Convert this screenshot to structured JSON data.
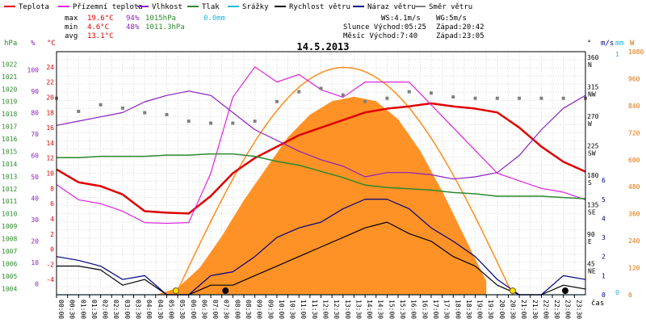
{
  "legend": [
    {
      "label": "Teplota",
      "color": "#e00000"
    },
    {
      "label": "Přízemní teplota",
      "color": "#dd22dd"
    },
    {
      "label": "Vlhkost",
      "color": "#8a1fc0"
    },
    {
      "label": "Tlak",
      "color": "#2a8a2a"
    },
    {
      "label": "Srážky",
      "color": "#22b8d8"
    },
    {
      "label": "Rychlost větru",
      "color": "#000000"
    },
    {
      "label": "Náraz větru",
      "color": "#000080"
    },
    {
      "label": "Směr větru",
      "color": "#808080"
    }
  ],
  "stats": {
    "max": {
      "label": "max",
      "temp": "19.6°C",
      "hum": "94%",
      "press": "1015hPa",
      "rain": "0.0mm"
    },
    "min": {
      "label": "min",
      "temp": "4.6°C",
      "hum": "48%",
      "press": "1011.3hPa"
    },
    "avg": {
      "label": "avg",
      "temp": "13.1°C"
    }
  },
  "info": {
    "ws": "WS:4.1m/s",
    "wg": "WG:5m/s",
    "sun": "Slunce Východ:05:25",
    "sunset": "Západ:20:42",
    "moon": "Měsíc  Východ:7:40",
    "moonset": "Západ:23:05"
  },
  "chart_data": {
    "type": "line",
    "title": "14.5.2013",
    "xlabel": "čas",
    "x_ticks": [
      "00:00",
      "00:30",
      "01:00",
      "01:30",
      "02:00",
      "02:30",
      "03:00",
      "03:30",
      "04:00",
      "04:30",
      "05:00",
      "05:30",
      "06:00",
      "06:30",
      "07:00",
      "07:30",
      "08:00",
      "08:30",
      "09:00",
      "09:30",
      "10:00",
      "10:30",
      "11:00",
      "11:30",
      "12:00",
      "12:30",
      "13:00",
      "13:30",
      "14:00",
      "14:30",
      "15:00",
      "15:30",
      "16:00",
      "16:30",
      "17:00",
      "17:30",
      "18:00",
      "18:30",
      "19:00",
      "19:30",
      "20:00",
      "20:30",
      "21:00",
      "21:30",
      "22:00",
      "22:30",
      "23:00",
      "23:30"
    ],
    "axes": {
      "hpa": {
        "label": "hPa",
        "ticks": [
          1004,
          1005,
          1006,
          1007,
          1008,
          1009,
          1010,
          1011,
          1012,
          1013,
          1014,
          1015,
          1016,
          1017,
          1018,
          1019,
          1020,
          1021,
          1022
        ]
      },
      "pct": {
        "label": "%",
        "ticks": [
          0,
          10,
          20,
          30,
          40,
          50,
          60,
          70,
          80,
          90,
          100
        ]
      },
      "temp": {
        "label": "°C",
        "ticks": [
          -4,
          -2,
          0,
          2,
          4,
          6,
          8,
          10,
          12,
          14,
          16,
          18,
          20,
          22,
          24
        ]
      },
      "dir": {
        "label": "°",
        "ticks": [
          "45 NE",
          "90 E",
          "135 SE",
          "180 S",
          "225 SW",
          "270 W",
          "315 NW",
          "360 N"
        ]
      },
      "ms": {
        "label": "m/s",
        "ticks": [
          0,
          1,
          2,
          3,
          4,
          5,
          6
        ]
      },
      "mm": {
        "label": "mm",
        "ticks": [
          "0",
          "1"
        ]
      },
      "w": {
        "label": "W",
        "ticks": [
          0,
          120,
          240,
          360,
          480,
          600,
          720,
          840,
          960,
          1080
        ]
      }
    },
    "series": [
      {
        "name": "Teplota",
        "color": "#e00000",
        "x": [
          0,
          1,
          2,
          3,
          4,
          5,
          6,
          7,
          8,
          9,
          10,
          11,
          12,
          13,
          14,
          15,
          16,
          17,
          18,
          19,
          20,
          21,
          22,
          23,
          24
        ],
        "values": [
          10.5,
          8.8,
          8.3,
          7.2,
          5.0,
          4.8,
          4.7,
          7.0,
          10.0,
          12.0,
          13.5,
          15.0,
          16.0,
          17.0,
          18.0,
          18.5,
          18.8,
          19.2,
          18.8,
          18.5,
          18.0,
          16.0,
          13.5,
          11.5,
          10.2
        ]
      },
      {
        "name": "Přízemní teplota",
        "color": "#dd22dd",
        "x": [
          0,
          1,
          2,
          3,
          4,
          5,
          6,
          7,
          8,
          9,
          10,
          11,
          12,
          13,
          14,
          15,
          16,
          17,
          18,
          19,
          20,
          21,
          22,
          23,
          24
        ],
        "values": [
          8.5,
          6.5,
          6.0,
          5.0,
          3.5,
          3.4,
          3.5,
          10.0,
          20.0,
          24.0,
          22.0,
          23.0,
          21.0,
          20.0,
          22.0,
          22.0,
          22.0,
          19.0,
          16.0,
          13.0,
          10.0,
          9.0,
          8.0,
          7.5,
          6.5
        ]
      },
      {
        "name": "Vlhkost",
        "color": "#8a1fc0",
        "x": [
          0,
          1,
          2,
          3,
          4,
          5,
          6,
          7,
          8,
          9,
          10,
          11,
          12,
          13,
          14,
          15,
          16,
          17,
          18,
          19,
          20,
          21,
          22,
          23,
          24
        ],
        "values": [
          74,
          76,
          78,
          80,
          85,
          88,
          90,
          88,
          80,
          72,
          67,
          62,
          58,
          55,
          50,
          52,
          52,
          51,
          49,
          50,
          52,
          60,
          72,
          82,
          88
        ]
      },
      {
        "name": "Tlak",
        "color": "#2a8a2a",
        "x": [
          0,
          1,
          2,
          3,
          4,
          5,
          6,
          7,
          8,
          9,
          10,
          11,
          12,
          13,
          14,
          15,
          16,
          17,
          18,
          19,
          20,
          21,
          22,
          23,
          24
        ],
        "values": [
          1014.5,
          1014.5,
          1014.6,
          1014.6,
          1014.6,
          1014.7,
          1014.7,
          1014.8,
          1014.8,
          1014.6,
          1014.2,
          1013.9,
          1013.4,
          1012.9,
          1012.3,
          1012.1,
          1012.0,
          1011.9,
          1011.7,
          1011.6,
          1011.4,
          1011.4,
          1011.4,
          1011.3,
          1011.2
        ]
      },
      {
        "name": "Srážky",
        "color": "#22b8d8",
        "x": [
          0,
          24
        ],
        "values": [
          0,
          0
        ]
      },
      {
        "name": "Rychlost větru",
        "color": "#000000",
        "x": [
          0,
          1,
          2,
          3,
          4,
          5,
          6,
          7,
          8,
          9,
          10,
          11,
          12,
          13,
          14,
          15,
          16,
          17,
          18,
          19,
          20,
          21,
          22,
          23,
          24
        ],
        "values": [
          1.5,
          1.5,
          1.3,
          0.5,
          0.8,
          0,
          0,
          0.5,
          0.5,
          1.0,
          1.5,
          2.0,
          2.5,
          3.0,
          3.5,
          3.8,
          3.2,
          2.8,
          2.0,
          1.5,
          0.5,
          0,
          0,
          0.5,
          0.3
        ]
      },
      {
        "name": "Náraz větru",
        "color": "#000080",
        "x": [
          0,
          1,
          2,
          3,
          4,
          5,
          6,
          7,
          8,
          9,
          10,
          11,
          12,
          13,
          14,
          15,
          16,
          17,
          18,
          19,
          20,
          21,
          22,
          23,
          24
        ],
        "values": [
          2.0,
          1.8,
          1.5,
          0.8,
          1.0,
          0,
          0,
          1.0,
          1.2,
          2.0,
          3.0,
          3.5,
          3.8,
          4.5,
          5.0,
          5.0,
          4.5,
          3.5,
          2.8,
          2.0,
          0.8,
          0,
          0,
          1.0,
          0.8
        ]
      },
      {
        "name": "Směr větru",
        "color": "#808080",
        "x": [
          0,
          1,
          2,
          3,
          4,
          5,
          6,
          7,
          8,
          9,
          10,
          11,
          12,
          13,
          14,
          15,
          16,
          17,
          18,
          19,
          20,
          21,
          22,
          23,
          24
        ],
        "values": [
          300,
          280,
          290,
          285,
          278,
          275,
          265,
          262,
          262,
          265,
          295,
          310,
          315,
          305,
          295,
          300,
          310,
          308,
          302,
          300,
          300,
          300,
          300,
          300,
          300
        ]
      }
    ],
    "solar_w": {
      "x": [
        4.5,
        5.5,
        6.5,
        7.5,
        8.5,
        9.5,
        10.5,
        11.5,
        12.5,
        13.5,
        14.5,
        15.5,
        16.5,
        17.5,
        18.5,
        19.5
      ],
      "values": [
        0,
        30,
        120,
        260,
        420,
        560,
        700,
        800,
        860,
        880,
        860,
        780,
        640,
        460,
        260,
        60
      ]
    },
    "sun_marks": [
      "05:25",
      "20:42"
    ],
    "moon_marks": [
      "07:40",
      "23:05"
    ]
  }
}
